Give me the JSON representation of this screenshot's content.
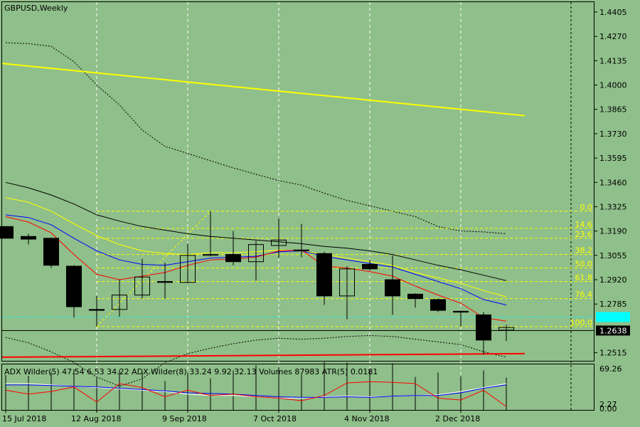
{
  "chart_title": "GBPUSD,Weekly",
  "indicator_text": "ADX Wilder(5) 47.54 6.53 34.22 ADX Wilder(8) 33.24 9.92 32.13 Volumes 87983 ATR(5) 0.0181",
  "colors": {
    "background": "#8fbf8a",
    "bull_candle": "#ffffff",
    "bear_candle": "#000000",
    "fib": "#ffff00",
    "ma_red": "#ff0000",
    "ma_blue": "#0000ff",
    "ma_yellow": "#ffff00",
    "ma_black": "#000000",
    "trend_yellow": "#ffff00",
    "trend_red": "#ff0000",
    "bid_line": "#00ffff",
    "price_tag": "#000000"
  },
  "chart_data": {
    "type": "candlestick",
    "title": "GBPUSD,Weekly",
    "ylim": [
      1.247,
      1.446
    ],
    "y_ticks": [
      "1.4405",
      "1.4270",
      "1.4135",
      "1.4000",
      "1.3865",
      "1.3730",
      "1.3595",
      "1.3460",
      "1.3325",
      "1.3190",
      "1.3055",
      "1.2920",
      "1.2785",
      "1.2515"
    ],
    "current_price": "1.2638",
    "bid_price": "1.2713",
    "x_labels": [
      "15 Jul 2018",
      "12 Aug 2018",
      "9 Sep 2018",
      "7 Oct 2018",
      "4 Nov 2018",
      "2 Dec 2018"
    ],
    "candles": [
      {
        "o": 1.3215,
        "h": 1.3215,
        "l": 1.315,
        "c": 1.315
      },
      {
        "o": 1.316,
        "h": 1.3175,
        "l": 1.3115,
        "c": 1.3145
      },
      {
        "o": 1.315,
        "h": 1.3155,
        "l": 1.2985,
        "c": 1.3
      },
      {
        "o": 1.2995,
        "h": 1.3,
        "l": 1.271,
        "c": 1.277
      },
      {
        "o": 1.2755,
        "h": 1.283,
        "l": 1.266,
        "c": 1.275
      },
      {
        "o": 1.2755,
        "h": 1.292,
        "l": 1.2715,
        "c": 1.2835
      },
      {
        "o": 1.2835,
        "h": 1.3035,
        "l": 1.2815,
        "c": 1.2935
      },
      {
        "o": 1.291,
        "h": 1.3015,
        "l": 1.2815,
        "c": 1.2905
      },
      {
        "o": 1.2905,
        "h": 1.312,
        "l": 1.29,
        "c": 1.3055
      },
      {
        "o": 1.3055,
        "h": 1.33,
        "l": 1.305,
        "c": 1.306
      },
      {
        "o": 1.306,
        "h": 1.319,
        "l": 1.3,
        "c": 1.302
      },
      {
        "o": 1.302,
        "h": 1.3135,
        "l": 1.2915,
        "c": 1.3115
      },
      {
        "o": 1.311,
        "h": 1.326,
        "l": 1.304,
        "c": 1.314
      },
      {
        "o": 1.3085,
        "h": 1.323,
        "l": 1.3045,
        "c": 1.308
      },
      {
        "o": 1.3065,
        "h": 1.3075,
        "l": 1.278,
        "c": 1.283
      },
      {
        "o": 1.283,
        "h": 1.2995,
        "l": 1.27,
        "c": 1.298
      },
      {
        "o": 1.3005,
        "h": 1.303,
        "l": 1.297,
        "c": 1.298
      },
      {
        "o": 1.292,
        "h": 1.3055,
        "l": 1.2725,
        "c": 1.283
      },
      {
        "o": 1.284,
        "h": 1.2845,
        "l": 1.2765,
        "c": 1.2815
      },
      {
        "o": 1.281,
        "h": 1.2815,
        "l": 1.274,
        "c": 1.275
      },
      {
        "o": 1.2745,
        "h": 1.275,
        "l": 1.266,
        "c": 1.274
      },
      {
        "o": 1.2725,
        "h": 1.274,
        "l": 1.2505,
        "c": 1.2585
      },
      {
        "o": 1.264,
        "h": 1.267,
        "l": 1.258,
        "c": 1.2655
      }
    ],
    "fib_levels": [
      {
        "label": "0.0",
        "price": 1.33
      },
      {
        "label": "14.6",
        "price": 1.3205
      },
      {
        "label": "23.6",
        "price": 1.315
      },
      {
        "label": "38.2",
        "price": 1.306
      },
      {
        "label": "50.0",
        "price": 1.2985
      },
      {
        "label": "61.8",
        "price": 1.291
      },
      {
        "label": "76.4",
        "price": 1.2815
      },
      {
        "label": "100.0",
        "price": 1.266
      }
    ],
    "ma_red": [
      1.327,
      1.324,
      1.318,
      1.306,
      1.295,
      1.292,
      1.294,
      1.296,
      1.3,
      1.303,
      1.3035,
      1.3045,
      1.308,
      1.3085,
      1.2995,
      1.2985,
      1.2965,
      1.294,
      1.2885,
      1.2835,
      1.279,
      1.271,
      1.269
    ],
    "ma_blue": [
      1.328,
      1.3265,
      1.3225,
      1.315,
      1.308,
      1.303,
      1.3005,
      1.3,
      1.302,
      1.304,
      1.3045,
      1.305,
      1.3075,
      1.308,
      1.305,
      1.303,
      1.301,
      1.299,
      1.295,
      1.291,
      1.287,
      1.281,
      1.278
    ],
    "ma_yellow": [
      1.3375,
      1.335,
      1.33,
      1.323,
      1.3165,
      1.3115,
      1.308,
      1.3065,
      1.306,
      1.307,
      1.307,
      1.3075,
      1.3085,
      1.308,
      1.306,
      1.304,
      1.302,
      1.3,
      1.296,
      1.293,
      1.29,
      1.286,
      1.2825
    ],
    "ma_black": [
      1.346,
      1.343,
      1.339,
      1.334,
      1.328,
      1.3245,
      1.3215,
      1.3195,
      1.3175,
      1.316,
      1.315,
      1.314,
      1.313,
      1.312,
      1.3105,
      1.3095,
      1.308,
      1.306,
      1.303,
      1.3,
      1.2975,
      1.2945,
      1.2915
    ],
    "env_upper": [
      1.4235,
      1.423,
      1.4215,
      1.413,
      1.4,
      1.389,
      1.375,
      1.366,
      1.362,
      1.358,
      1.354,
      1.3505,
      1.347,
      1.3445,
      1.34,
      1.336,
      1.333,
      1.33,
      1.327,
      1.3215,
      1.319,
      1.3185,
      1.3175
    ],
    "env_lower": [
      1.26,
      1.257,
      1.252,
      1.246,
      1.238,
      1.233,
      1.237,
      1.246,
      1.251,
      1.254,
      1.2565,
      1.2585,
      1.2595,
      1.259,
      1.2595,
      1.2605,
      1.261,
      1.2605,
      1.259,
      1.2575,
      1.256,
      1.252,
      1.249
    ],
    "trend_yellow": {
      "start": 1.412,
      "end": 1.383
    },
    "trend_red": {
      "start": 1.249,
      "end": 1.251
    },
    "indicator": {
      "ylim": [
        0,
        69.26
      ],
      "y_ticks": [
        "69.26",
        "2.27",
        "0.00"
      ],
      "line_red": [
        30,
        24,
        28,
        35,
        12,
        40,
        34,
        20,
        30,
        22,
        24,
        20,
        18,
        14,
        22,
        41,
        43,
        42,
        40,
        18,
        15,
        30,
        5
      ],
      "line_blue": [
        38,
        38,
        37,
        36,
        35,
        33,
        31,
        29,
        26,
        25,
        24,
        22,
        20,
        19,
        19,
        20,
        19,
        21,
        22,
        22,
        26,
        33,
        38
      ],
      "line_white": [
        40,
        40,
        38,
        36,
        34,
        32,
        30,
        28,
        24,
        22,
        22,
        20,
        18,
        18,
        20,
        21,
        20,
        21,
        22,
        23,
        28,
        34,
        40
      ],
      "volume": [
        53,
        52,
        58,
        62,
        49,
        61,
        58,
        44,
        57,
        48,
        60,
        68,
        65,
        54,
        73,
        72,
        61,
        71,
        50,
        57,
        51,
        60,
        49
      ]
    }
  }
}
